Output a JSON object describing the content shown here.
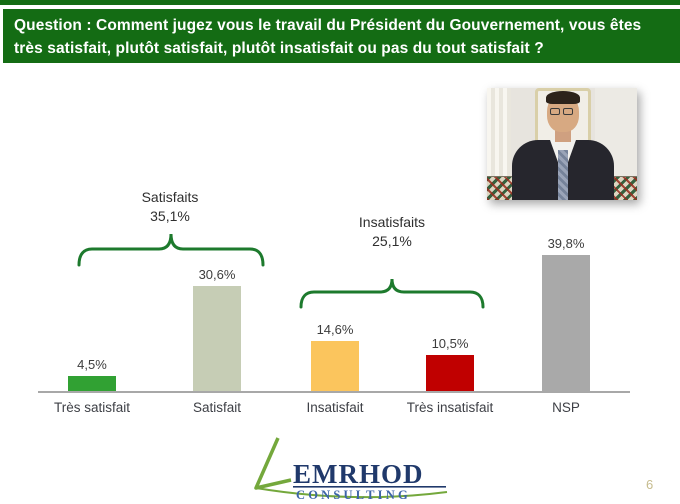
{
  "banner": {
    "text": "Question : Comment jugez vous le travail du Président du Gouvernement, vous êtes très satisfait, plutôt satisfait, plutôt insatisfait ou pas du tout satisfait ?",
    "bg_color": "#146c14",
    "text_color": "#ffffff"
  },
  "page_number": "6",
  "chart_data": {
    "type": "bar",
    "title": "",
    "xlabel": "",
    "ylabel": "",
    "categories": [
      "Très satisfait",
      "Satisfait",
      "Insatisfait",
      "Très insatisfait",
      "NSP"
    ],
    "values": [
      4.5,
      30.6,
      14.6,
      10.5,
      39.8
    ],
    "value_labels": [
      "4,5%",
      "30,6%",
      "14,6%",
      "10,5%",
      "39,8%"
    ],
    "bar_colors": [
      "#31a133",
      "#c6cdb5",
      "#fbc55d",
      "#c00000",
      "#a9a9a9"
    ],
    "ylim": [
      0,
      43
    ],
    "grid": false,
    "legend": "none",
    "axis_color": "#a8a8a8",
    "bracket_color": "#1d7a2d",
    "annotations": [
      {
        "label": "Satisfaits",
        "value_label": "35,1%",
        "value": 35.1,
        "spans": [
          "Très satisfait",
          "Satisfait"
        ]
      },
      {
        "label": "Insatisfaits",
        "value_label": "25,1%",
        "value": 25.1,
        "spans": [
          "Insatisfait",
          "Très insatisfait"
        ]
      }
    ]
  },
  "logo": {
    "name": "EMRHOD",
    "subtitle": "CONSULTING",
    "name_color": "#20396b",
    "subtitle_color": "#3c64a8",
    "mark_color": "#74a83c"
  }
}
